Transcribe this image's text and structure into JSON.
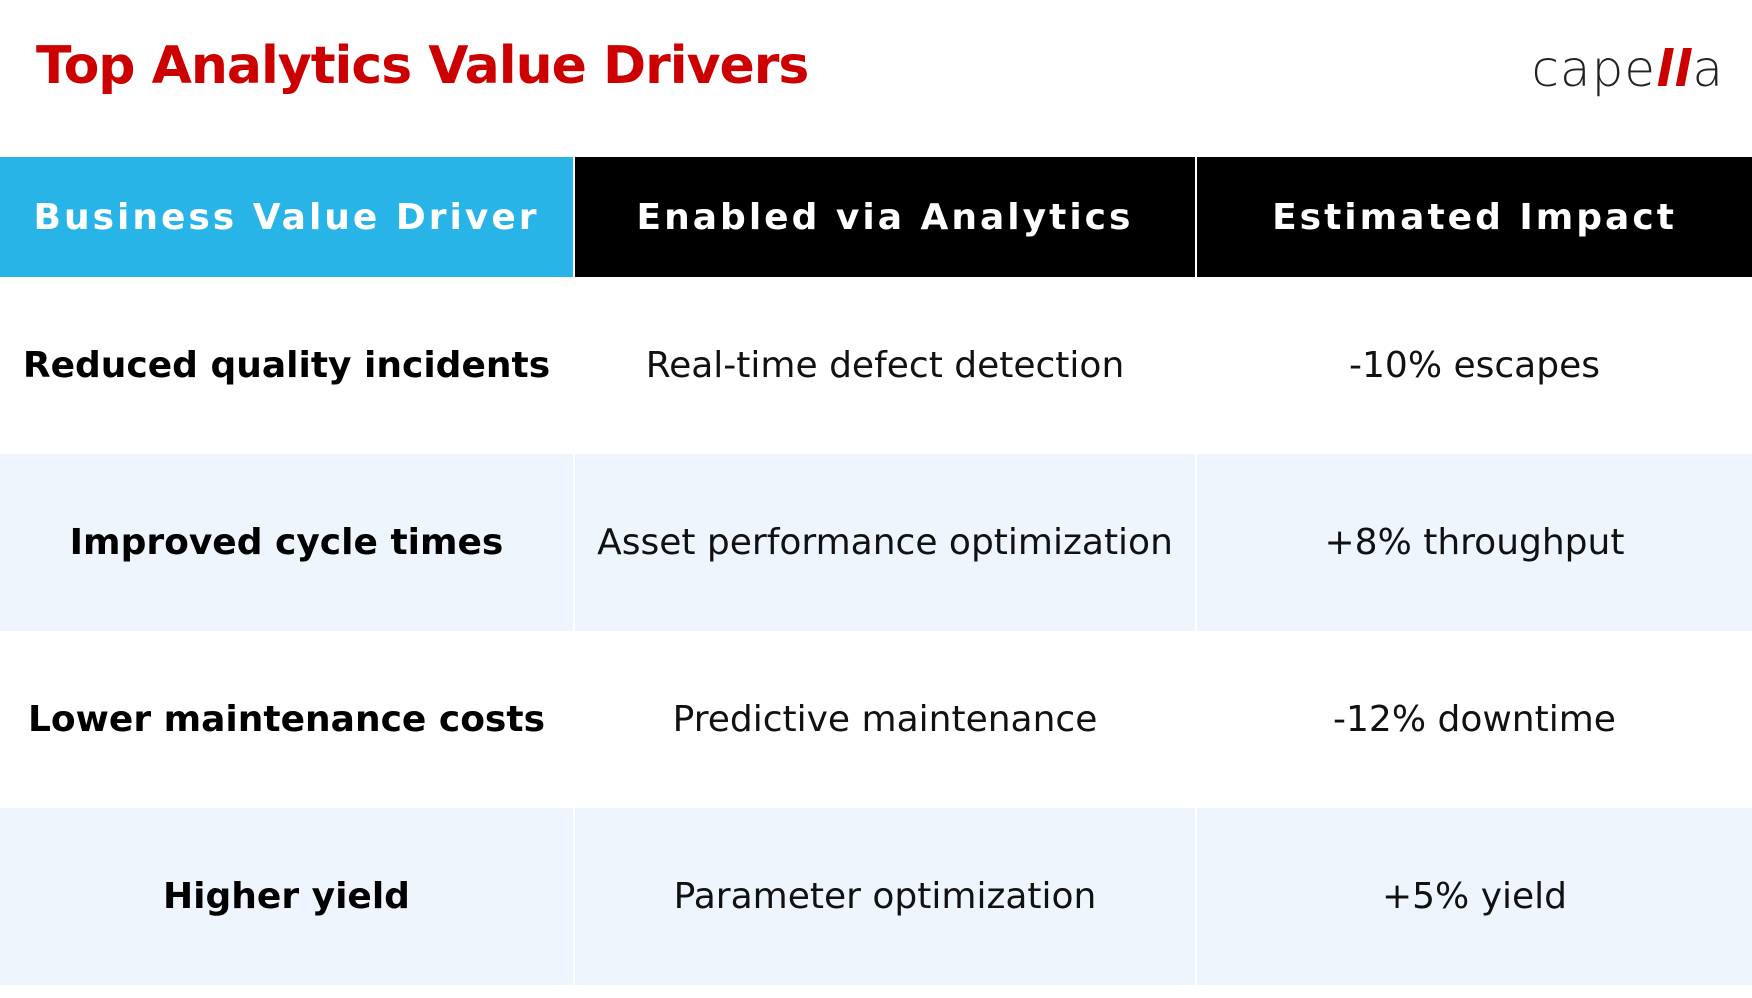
{
  "header": {
    "title": "Top Analytics Value Drivers",
    "logo_text_start": "cape",
    "logo_text_accent": "ll",
    "logo_text_end": "a"
  },
  "table": {
    "headers": [
      "Business Value Driver",
      "Enabled via Analytics",
      "Estimated Impact"
    ],
    "rows": [
      {
        "driver": "Reduced quality incidents",
        "enabler": "Real-time defect detection",
        "impact": "-10% escapes"
      },
      {
        "driver": "Improved cycle times",
        "enabler": "Asset performance optimization",
        "impact": "+8% throughput"
      },
      {
        "driver": "Lower maintenance costs",
        "enabler": "Predictive maintenance",
        "impact": "-12% downtime"
      },
      {
        "driver": "Higher yield",
        "enabler": "Parameter optimization",
        "impact": "+5% yield"
      }
    ]
  },
  "colors": {
    "title": "#cc0000",
    "logo_accent": "#cc0000",
    "header_accent_bg": "#29b4e8",
    "header_dark_bg": "#000000",
    "row_white_bg": "#ffffff",
    "row_alt_bg": "#eef5fd"
  }
}
